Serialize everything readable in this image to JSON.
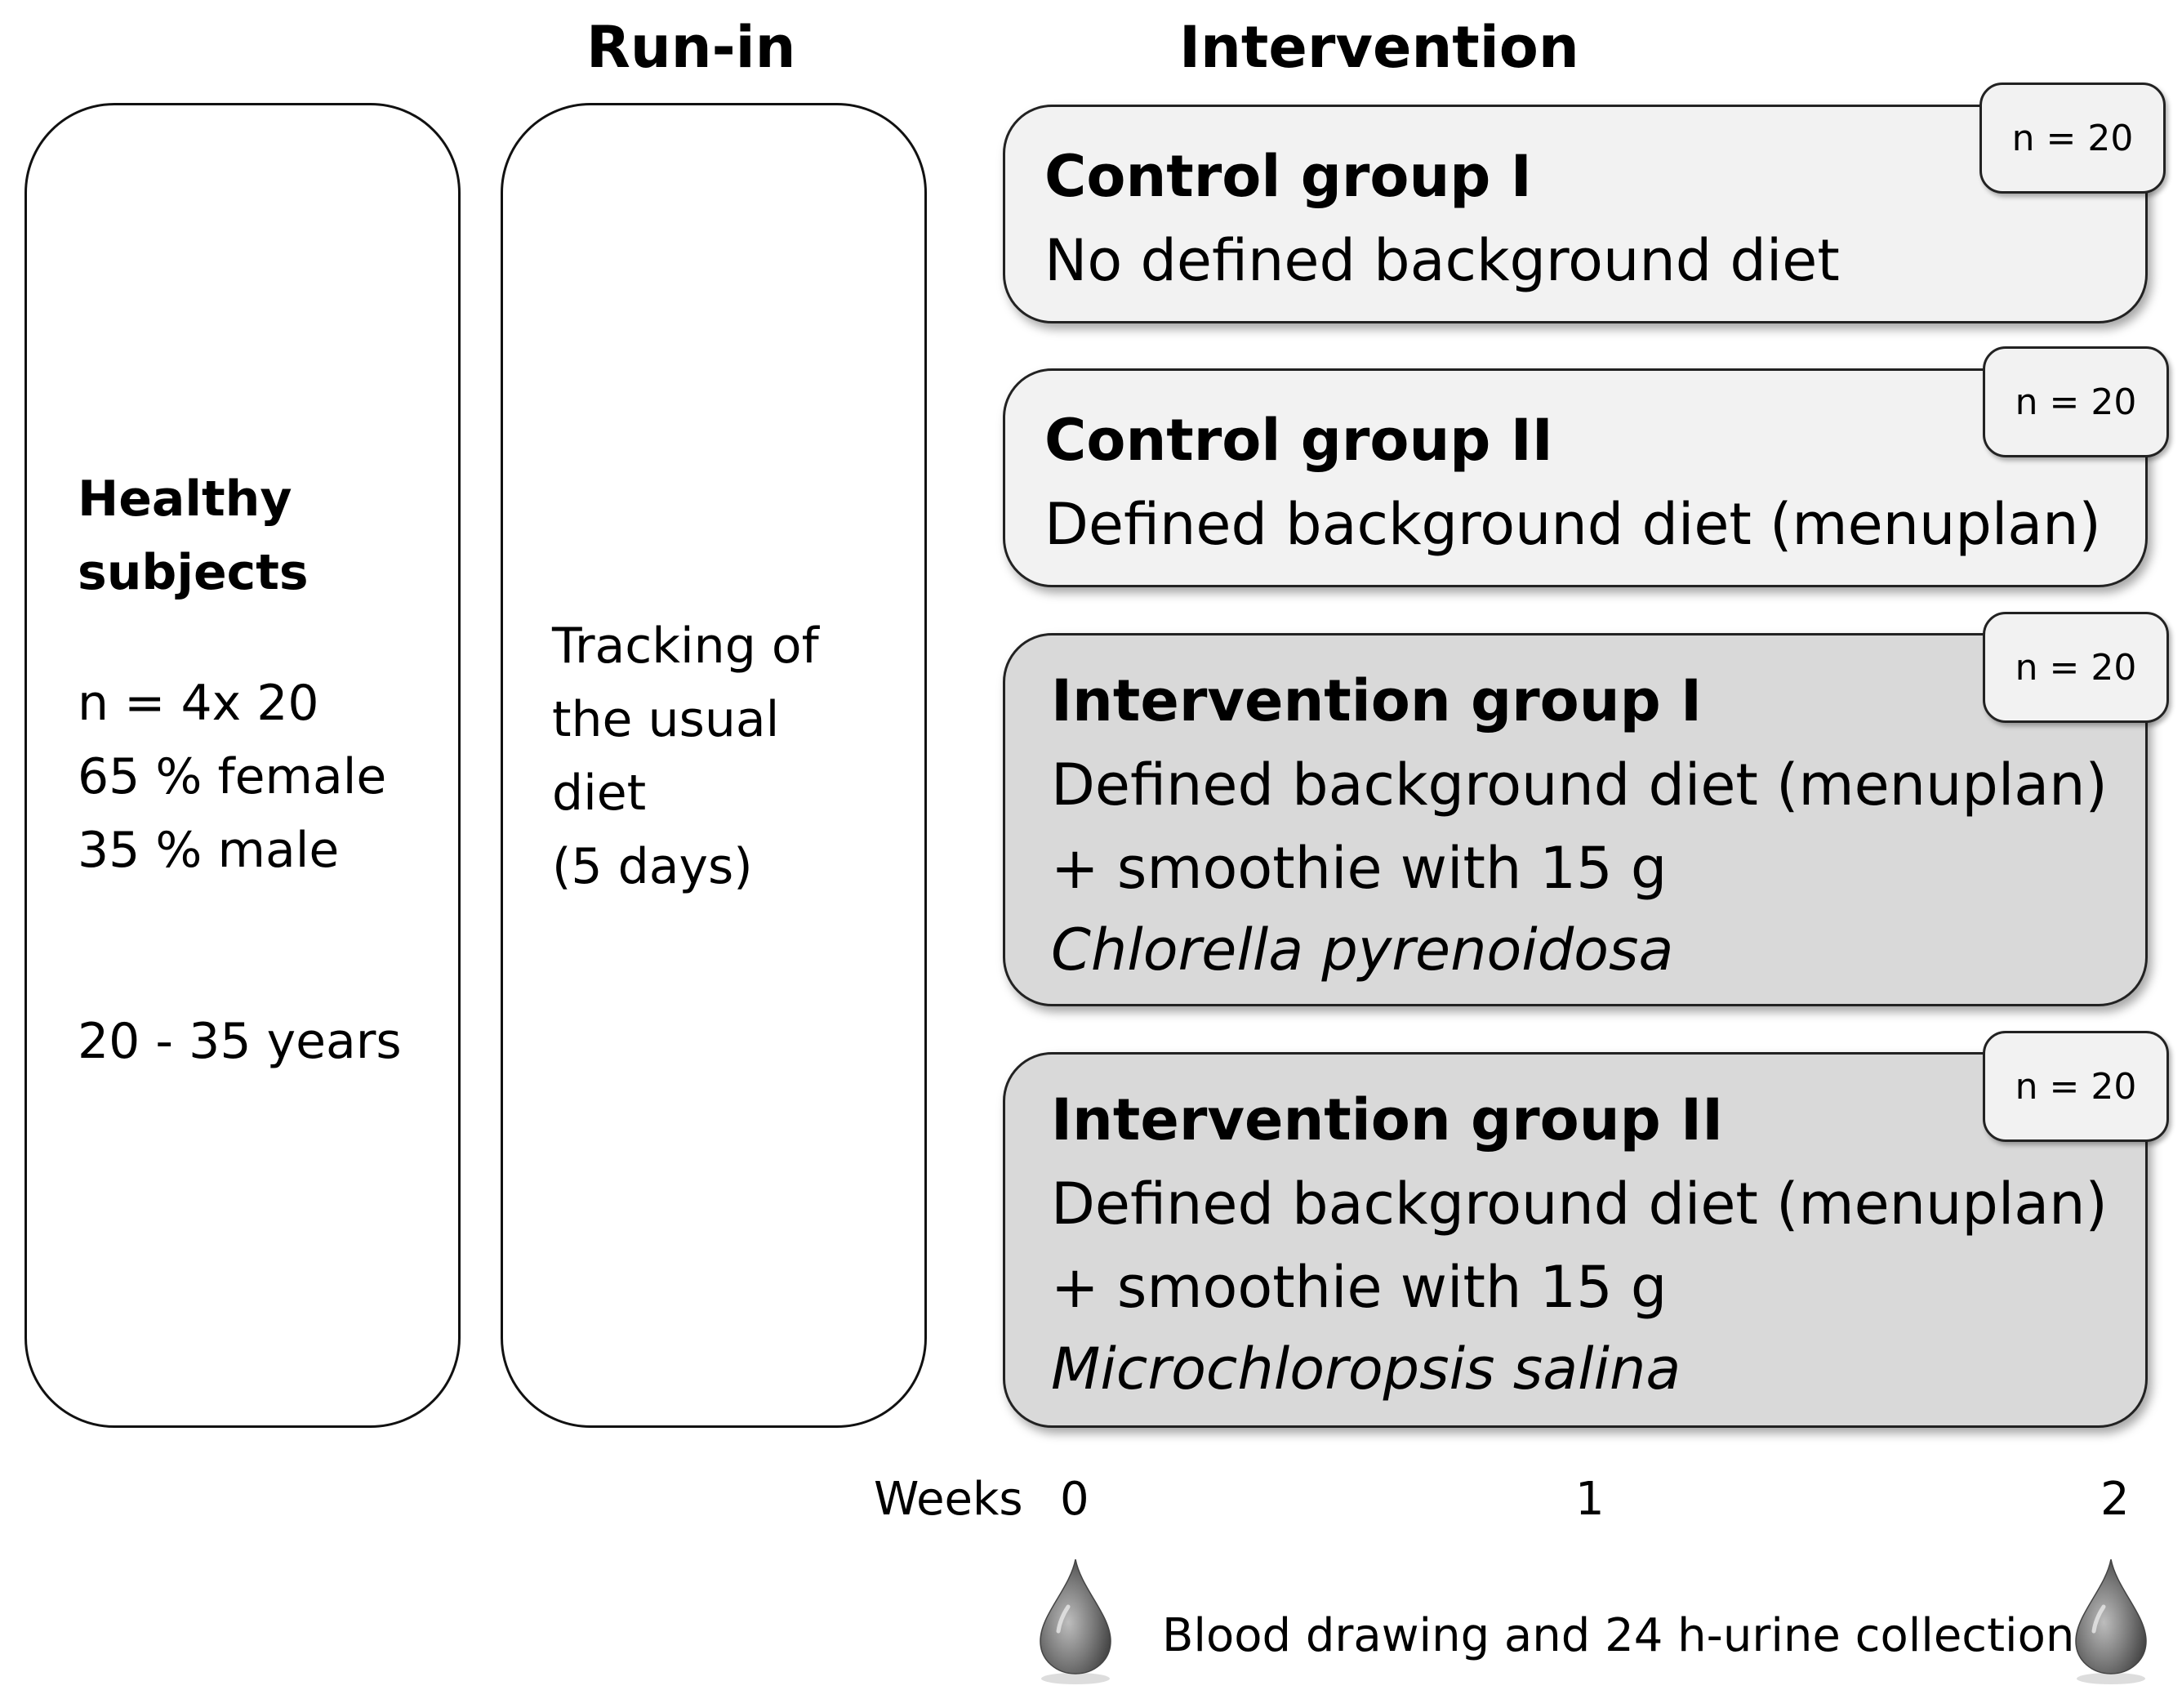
{
  "headings": {
    "run_in": "Run-in",
    "intervention": "Intervention"
  },
  "subjects_panel": {
    "title_line1": "Healthy",
    "title_line2": "subjects",
    "line1": "n = 4x 20",
    "line2": "65 % female",
    "line3": "35 % male",
    "line4": "20 - 35 years"
  },
  "runin_panel": {
    "line1": "Tracking of",
    "line2": "the usual",
    "line3": "diet",
    "line4": "(5 days)"
  },
  "groups": [
    {
      "title": "Control group I",
      "lines": [
        "No defined background diet"
      ],
      "n": "n = 20"
    },
    {
      "title": "Control group II",
      "lines": [
        "Defined background diet (menuplan)"
      ],
      "n": "n = 20"
    },
    {
      "title": "Intervention group I",
      "lines": [
        "Defined background diet (menuplan)",
        "+ smoothie with 15 g",
        "Chlorella pyrenoidosa"
      ],
      "n": "n = 20"
    },
    {
      "title": "Intervention group II",
      "lines": [
        "Defined background diet (menuplan)",
        "+ smoothie with 15 g",
        "Microchloropsis salina"
      ],
      "n": "n = 20"
    }
  ],
  "timeline": {
    "label": "Weeks",
    "ticks": [
      "0",
      "1",
      "2"
    ],
    "sampling_note": "Blood drawing and 24 h-urine collection"
  },
  "colors": {
    "control_fill": "#f2f2f2",
    "intervention_fill": "#d9d9d9",
    "drop": "#7a7a7a"
  },
  "icons": {
    "sampling": "blood-drop-icon"
  }
}
